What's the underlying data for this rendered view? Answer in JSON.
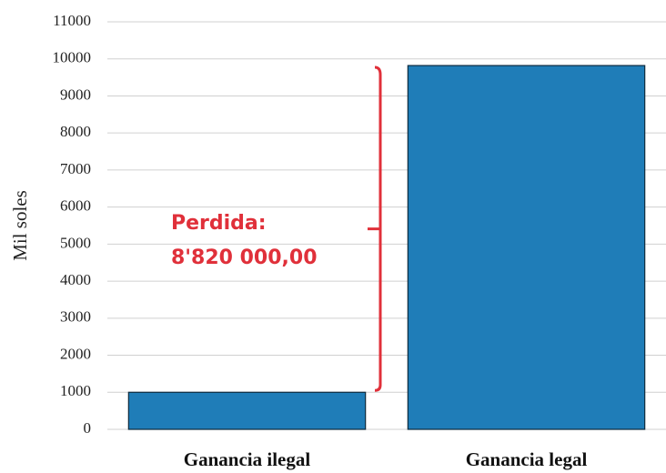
{
  "chart_data": {
    "type": "bar",
    "y_label": "Mil soles",
    "categories": [
      "Ganancia ilegal",
      "Ganancia legal"
    ],
    "values": [
      1000,
      9820
    ],
    "color": "#1f7db8",
    "ylim": [
      0,
      11000
    ],
    "yticks": [
      0,
      1000,
      2000,
      3000,
      4000,
      5000,
      6000,
      7000,
      8000,
      9000,
      10000,
      11000
    ],
    "grid": true,
    "annotations": [
      "Perdida:",
      "8'820 000,00"
    ],
    "annotation_color": "#e0303a"
  }
}
